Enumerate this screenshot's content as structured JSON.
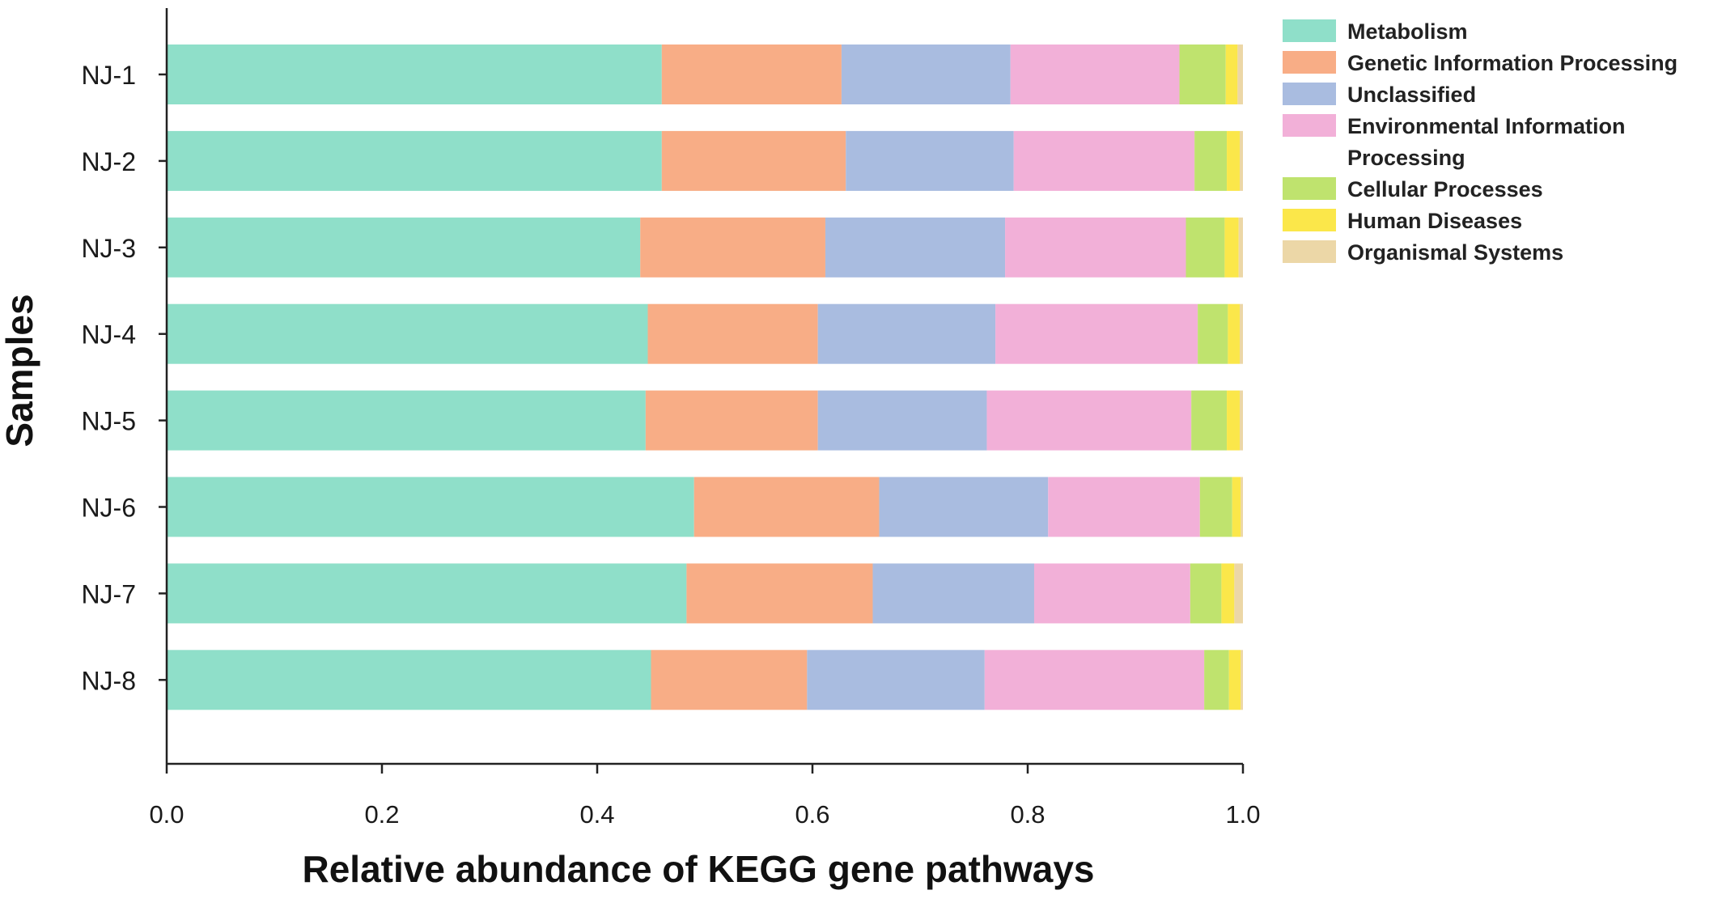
{
  "chart_data": {
    "type": "bar",
    "orientation": "horizontal",
    "stacked": true,
    "title": "",
    "xlabel": "Relative abundance of KEGG gene pathways",
    "ylabel": "Samples",
    "xlim": [
      0.0,
      1.0
    ],
    "xticks": [
      "0.0",
      "0.2",
      "0.4",
      "0.6",
      "0.8",
      "1.0"
    ],
    "grid": false,
    "legend_position": "top-right",
    "categories": [
      "NJ-1",
      "NJ-2",
      "NJ-3",
      "NJ-4",
      "NJ-5",
      "NJ-6",
      "NJ-7",
      "NJ-8"
    ],
    "series": [
      {
        "name": "Metabolism",
        "color": "#8fdfc9",
        "values": [
          0.46,
          0.46,
          0.44,
          0.447,
          0.445,
          0.49,
          0.483,
          0.45
        ]
      },
      {
        "name": "Genetic Information Processing",
        "color": "#f8ad86",
        "values": [
          0.167,
          0.171,
          0.172,
          0.158,
          0.16,
          0.172,
          0.173,
          0.145
        ]
      },
      {
        "name": "Unclassified",
        "color": "#a9bce0",
        "values": [
          0.157,
          0.156,
          0.167,
          0.165,
          0.157,
          0.157,
          0.15,
          0.165
        ]
      },
      {
        "name": "Environmental Information Processing",
        "color": "#f2b0d8",
        "values": [
          0.157,
          0.168,
          0.168,
          0.188,
          0.19,
          0.141,
          0.145,
          0.204
        ]
      },
      {
        "name": "Cellular Processes",
        "color": "#bfe36e",
        "values": [
          0.043,
          0.03,
          0.036,
          0.028,
          0.033,
          0.03,
          0.029,
          0.023
        ]
      },
      {
        "name": "Human Diseases",
        "color": "#fbe74a",
        "values": [
          0.011,
          0.012,
          0.013,
          0.011,
          0.012,
          0.008,
          0.012,
          0.011
        ]
      },
      {
        "name": "Organismal Systems",
        "color": "#ecd7a7",
        "values": [
          0.005,
          0.003,
          0.004,
          0.003,
          0.003,
          0.002,
          0.008,
          0.002
        ]
      }
    ],
    "legend_labels": [
      [
        "Metabolism"
      ],
      [
        "Genetic Information Processing"
      ],
      [
        "Unclassified"
      ],
      [
        "Environmental Information",
        "Processing"
      ],
      [
        "Cellular Processes"
      ],
      [
        "Human Diseases"
      ],
      [
        "Organismal Systems"
      ]
    ]
  }
}
